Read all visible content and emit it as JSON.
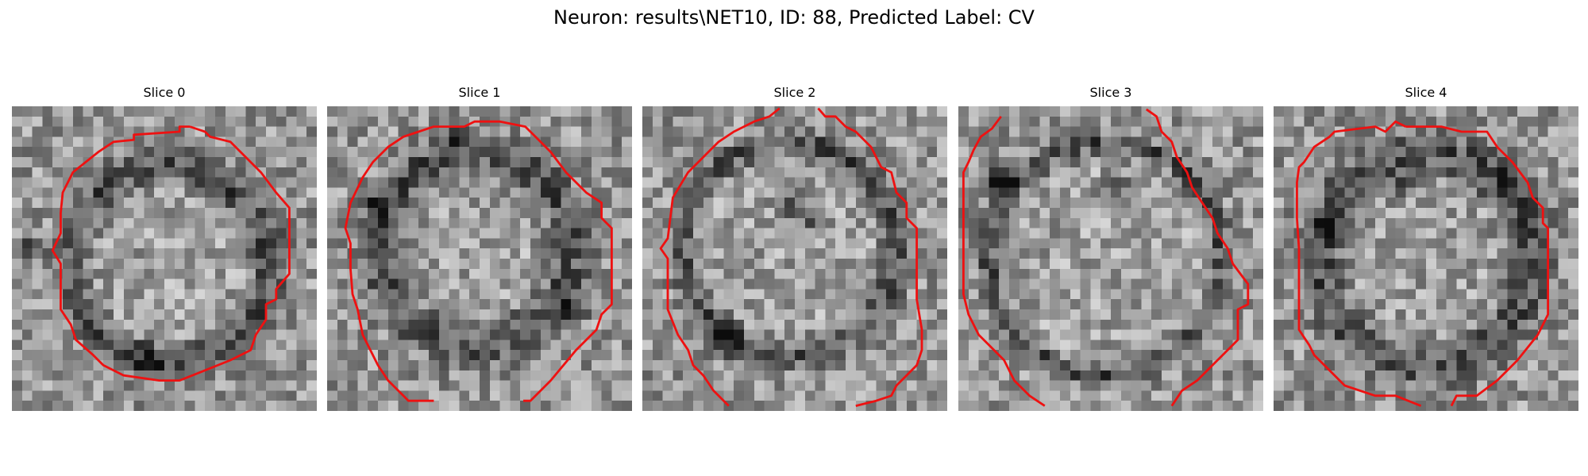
{
  "figure": {
    "title": "Neuron: results\\NET10, ID: 88, Predicted Label: CV"
  },
  "panels": [
    {
      "title": "Slice 0"
    },
    {
      "title": "Slice 1"
    },
    {
      "title": "Slice 2"
    },
    {
      "title": "Slice 3"
    },
    {
      "title": "Slice 4"
    }
  ],
  "image": {
    "grid_size": 30,
    "colormap": "gray",
    "contour_color": "#ee1111"
  }
}
